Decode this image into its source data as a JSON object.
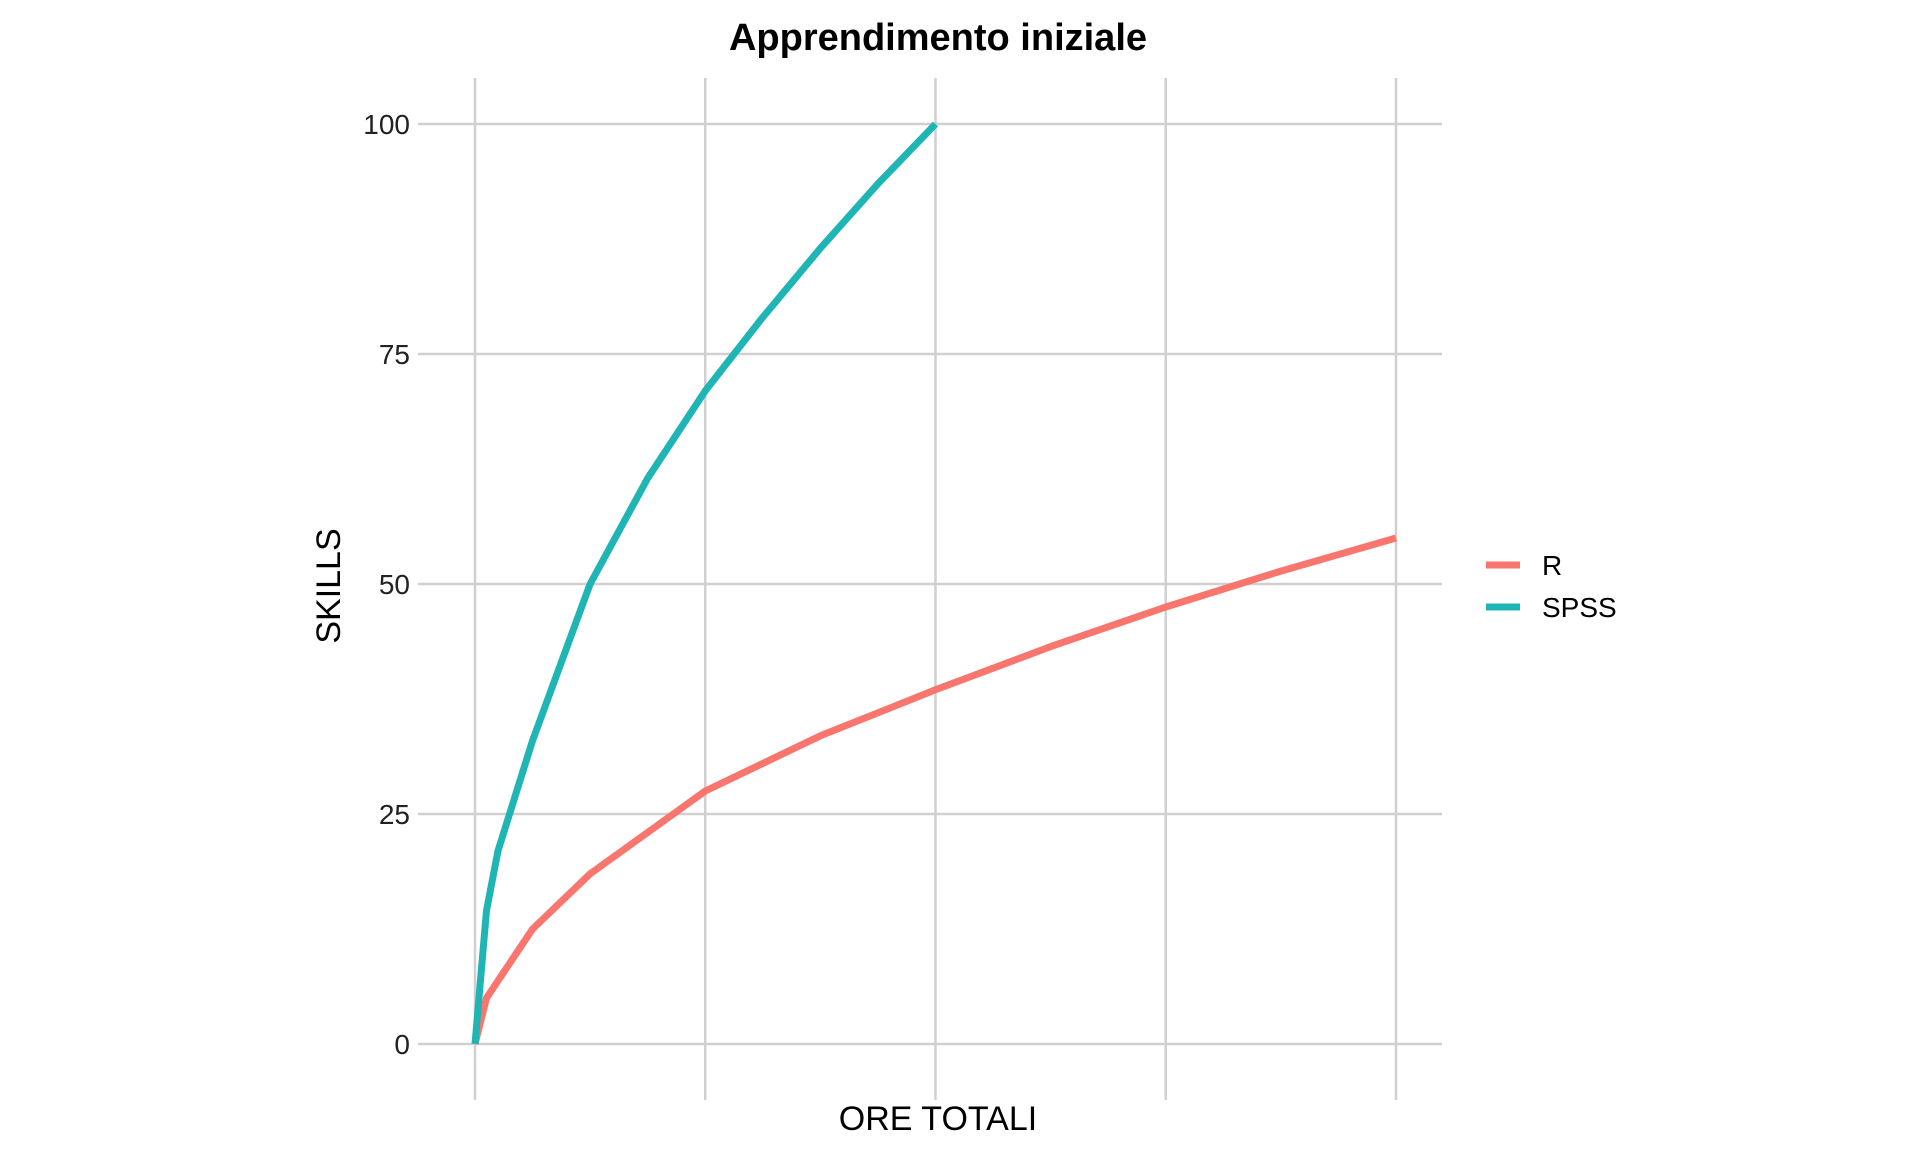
{
  "chart_data": {
    "type": "line",
    "title": "Apprendimento iniziale",
    "xlabel": "ORE TOTALI",
    "ylabel": "SKILLS",
    "xlim": [
      0,
      4
    ],
    "ylim": [
      0,
      100
    ],
    "x_ticks": [
      0,
      1,
      2,
      3,
      4
    ],
    "x_tick_labels": [
      "",
      "",
      "",
      "",
      ""
    ],
    "y_ticks": [
      0,
      25,
      50,
      75,
      100
    ],
    "y_tick_labels": [
      "0",
      "25",
      "50",
      "75",
      "100"
    ],
    "grid": true,
    "legend_position": "right",
    "series": [
      {
        "name": "R",
        "color": "#F8766D",
        "x": [
          0,
          0.05,
          0.25,
          0.5,
          1,
          1.5,
          2,
          2.5,
          3,
          3.5,
          4
        ],
        "y": [
          0,
          5,
          12.5,
          18.5,
          27.5,
          33.5,
          38.5,
          43.2,
          47.5,
          51.4,
          55
        ]
      },
      {
        "name": "SPSS",
        "color": "#1FB5B5",
        "x": [
          0,
          0.05,
          0.1,
          0.25,
          0.5,
          0.75,
          1,
          1.25,
          1.5,
          1.75,
          2
        ],
        "y": [
          0,
          14.5,
          21,
          33,
          50,
          61.5,
          71,
          79,
          86.5,
          93.5,
          100
        ]
      }
    ]
  }
}
